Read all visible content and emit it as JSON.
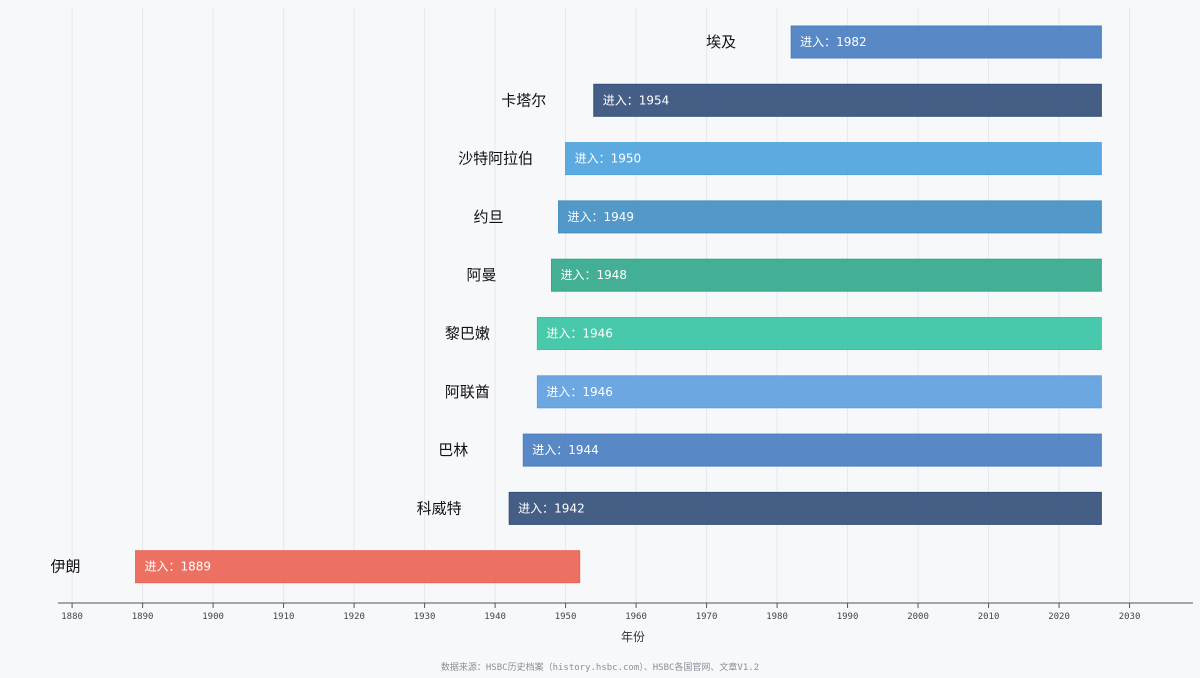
{
  "chart_data": {
    "type": "bar",
    "orientation": "horizontal",
    "xlabel": "年份",
    "xlim": [
      1878,
      2039
    ],
    "xticks": [
      1880,
      1890,
      1900,
      1910,
      1920,
      1930,
      1940,
      1950,
      1960,
      1970,
      1980,
      1990,
      2000,
      2010,
      2020,
      2030
    ],
    "grid": true,
    "bar_end": 2026,
    "label_prefix": "进入：",
    "series": [
      {
        "category": "埃及",
        "start": 1982,
        "color": "#4a7fc1"
      },
      {
        "category": "卡塔尔",
        "start": 1954,
        "color": "#34507c"
      },
      {
        "category": "沙特阿拉伯",
        "start": 1950,
        "color": "#4fa3de"
      },
      {
        "category": "约旦",
        "start": 1949,
        "color": "#4390c4"
      },
      {
        "category": "阿曼",
        "start": 1948,
        "color": "#33a98c"
      },
      {
        "category": "黎巴嫩",
        "start": 1946,
        "color": "#38c4a4"
      },
      {
        "category": "阿联酋",
        "start": 1946,
        "color": "#609fde"
      },
      {
        "category": "巴林",
        "start": 1944,
        "color": "#4a7fc1"
      },
      {
        "category": "科威特",
        "start": 1942,
        "color": "#34507c"
      },
      {
        "category": "伊朗",
        "start": 1889,
        "end": 1952,
        "color": "#ec6556"
      }
    ]
  },
  "footer": {
    "source": "数据来源：HSBC历史档案（history.hsbc.com）、HSBC各国官网、文章V1.2"
  }
}
